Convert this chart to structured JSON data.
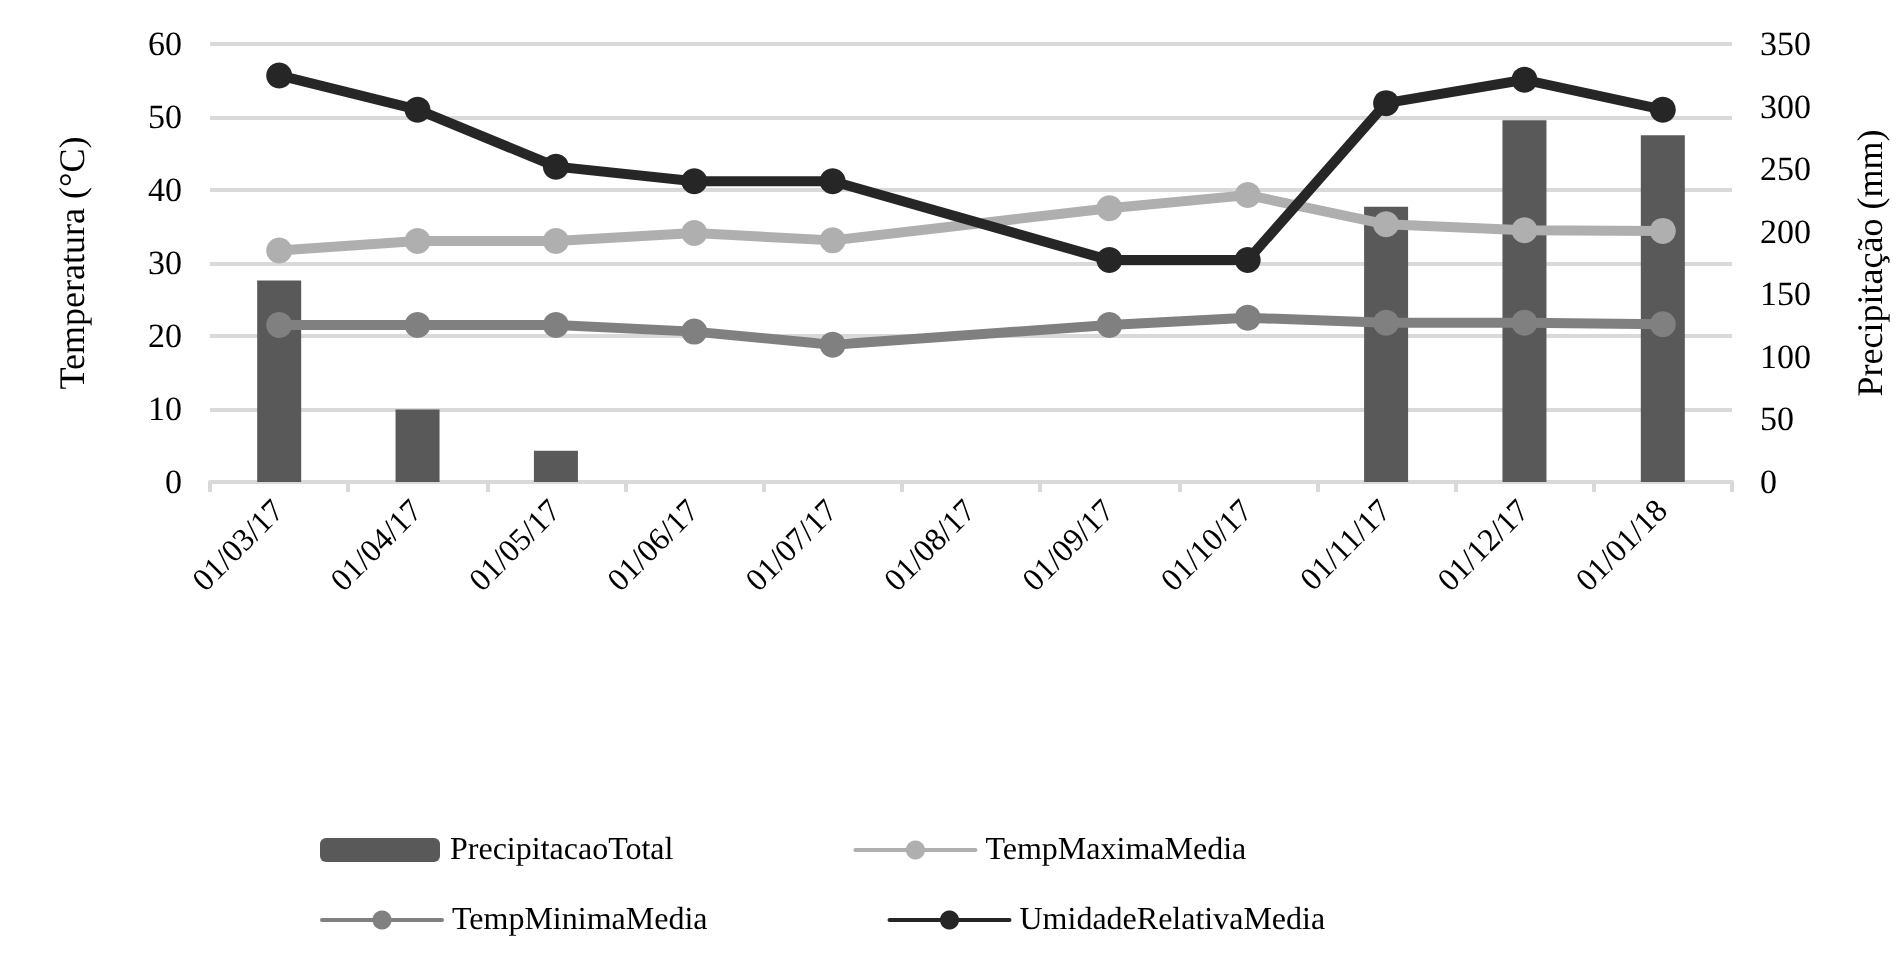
{
  "chart_data": {
    "type": "line",
    "ylabel": "Temperatura (°C)",
    "y2label": "Precipitação (mm)",
    "categories": [
      "01/03/17",
      "01/04/17",
      "01/05/17",
      "01/06/17",
      "01/07/17",
      "01/08/17",
      "01/09/17",
      "01/10/17",
      "01/11/17",
      "01/12/17",
      "01/01/18"
    ],
    "series": [
      {
        "name": "PrecipitacaoTotal",
        "type": "bar",
        "axis": "y2",
        "color": "#595959",
        "values": [
          161,
          58,
          25,
          0,
          0,
          null,
          0,
          0,
          220,
          289,
          277
        ]
      },
      {
        "name": "TempMaximaMedia",
        "color": "#afafaf",
        "values": [
          31.7,
          33.0,
          33.0,
          34.1,
          33.1,
          null,
          37.5,
          39.3,
          35.3,
          34.5,
          34.4
        ]
      },
      {
        "name": "TempMinimaMedia",
        "color": "#808080",
        "values": [
          21.5,
          21.5,
          21.5,
          20.6,
          18.8,
          null,
          21.5,
          22.5,
          21.8,
          21.8,
          21.6
        ]
      },
      {
        "name": "UmidadeRelativaMedia",
        "color": "#262626",
        "values": [
          55.7,
          51.0,
          43.2,
          41.2,
          41.2,
          null,
          30.4,
          30.4,
          51.9,
          55.1,
          51.0
        ]
      }
    ],
    "ylim": [
      0,
      60
    ],
    "yticks": [
      0,
      10,
      20,
      30,
      40,
      50,
      60
    ],
    "y2lim": [
      0,
      350
    ],
    "y2ticks": [
      0,
      50,
      100,
      150,
      200,
      250,
      300,
      350
    ],
    "grid": "y",
    "legend": "bottom",
    "marker": "circle",
    "line_style": "solid"
  }
}
